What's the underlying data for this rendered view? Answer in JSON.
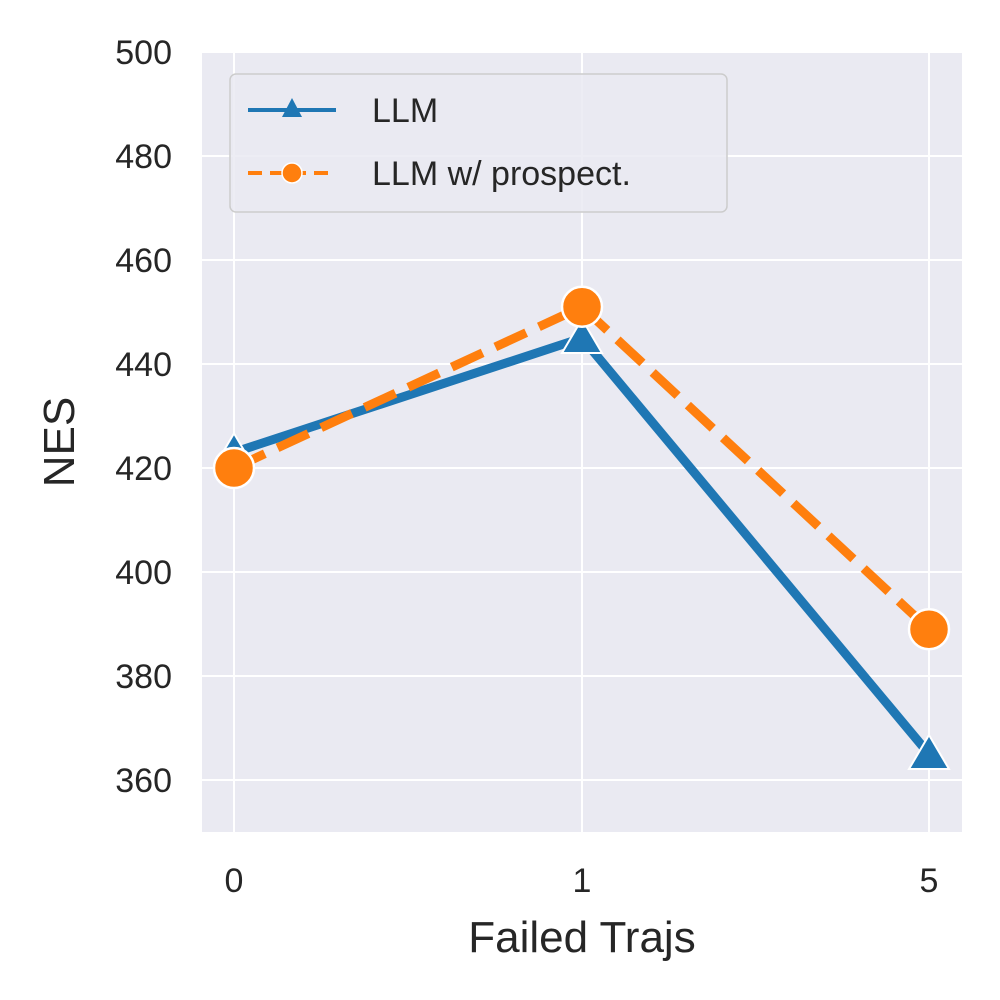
{
  "chart_data": {
    "type": "line",
    "title": "",
    "xlabel": "Failed Trajs",
    "ylabel": "NES",
    "categories": [
      "0",
      "1",
      "5"
    ],
    "ylim": [
      350,
      500
    ],
    "yticks": [
      360,
      380,
      400,
      420,
      440,
      460,
      480,
      500
    ],
    "grid": true,
    "legend_position": "top-left",
    "series": [
      {
        "name": "LLM",
        "values": [
          423,
          445,
          365
        ],
        "color": "#1f77b4",
        "marker": "triangle",
        "linestyle": "solid"
      },
      {
        "name": "LLM w/ prospect.",
        "values": [
          420,
          451,
          389
        ],
        "color": "#ff7f0e",
        "marker": "circle",
        "linestyle": "dashed"
      }
    ],
    "background_color": "#eaeaf2",
    "grid_color": "#ffffff"
  }
}
